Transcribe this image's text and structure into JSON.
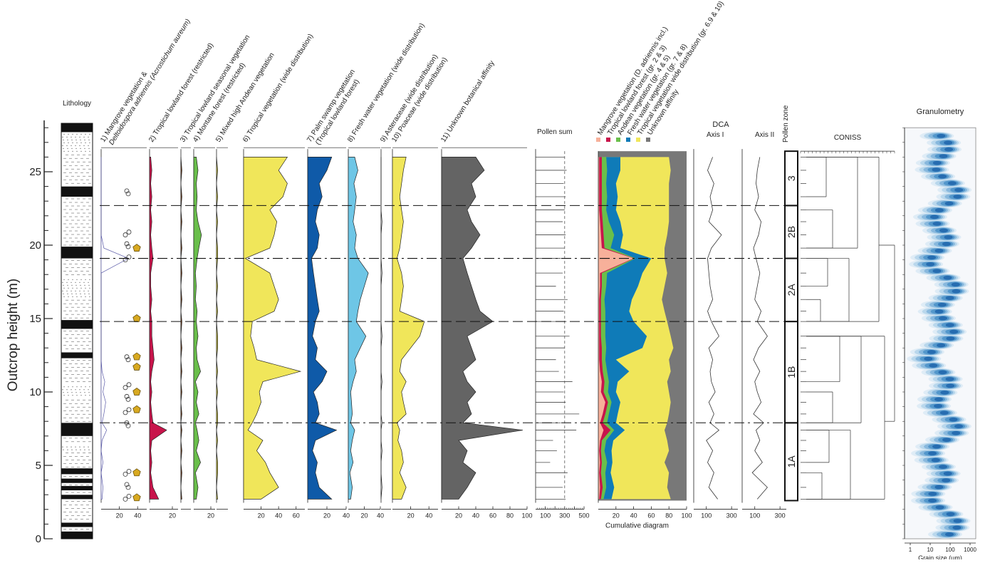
{
  "chart_data": {
    "type": "area",
    "ylabel": "Outcrop height (m)",
    "yticks": [
      0,
      5,
      10,
      15,
      20,
      25
    ],
    "ylim": [
      0,
      29
    ],
    "zone_boundaries": [
      {
        "height": 22.7,
        "style": "long-dash"
      },
      {
        "height": 19.1,
        "style": "dash-dot"
      },
      {
        "height": 14.8,
        "style": "long-dash"
      },
      {
        "height": 7.9,
        "style": "dash-dot"
      }
    ],
    "lithology": {
      "title": "Lithology",
      "units": [
        {
          "from": 0.0,
          "to": 0.5,
          "type": "coal"
        },
        {
          "from": 0.5,
          "to": 0.8,
          "type": "mudstone"
        },
        {
          "from": 0.8,
          "to": 1.1,
          "type": "coal"
        },
        {
          "from": 1.1,
          "to": 2.7,
          "type": "mudstone"
        },
        {
          "from": 2.7,
          "to": 3.0,
          "type": "coal"
        },
        {
          "from": 3.0,
          "to": 3.3,
          "type": "mudstone"
        },
        {
          "from": 3.3,
          "to": 3.6,
          "type": "coal"
        },
        {
          "from": 3.6,
          "to": 3.8,
          "type": "mudstone"
        },
        {
          "from": 3.8,
          "to": 4.1,
          "type": "coal"
        },
        {
          "from": 4.1,
          "to": 4.4,
          "type": "mudstone"
        },
        {
          "from": 4.4,
          "to": 4.8,
          "type": "coal"
        },
        {
          "from": 4.8,
          "to": 6.0,
          "type": "mudstone"
        },
        {
          "from": 6.0,
          "to": 6.4,
          "type": "sandstone"
        },
        {
          "from": 6.4,
          "to": 7.0,
          "type": "mudstone"
        },
        {
          "from": 7.0,
          "to": 7.9,
          "type": "coal"
        },
        {
          "from": 7.9,
          "to": 9.6,
          "type": "mudstone"
        },
        {
          "from": 9.6,
          "to": 10.5,
          "type": "sandstone"
        },
        {
          "from": 10.5,
          "to": 12.3,
          "type": "mudstone"
        },
        {
          "from": 12.3,
          "to": 12.7,
          "type": "coal"
        },
        {
          "from": 12.7,
          "to": 14.3,
          "type": "mudstone"
        },
        {
          "from": 14.3,
          "to": 14.9,
          "type": "coal"
        },
        {
          "from": 14.9,
          "to": 16.4,
          "type": "mudstone"
        },
        {
          "from": 16.4,
          "to": 17.8,
          "type": "sandstone"
        },
        {
          "from": 17.8,
          "to": 19.1,
          "type": "mudstone"
        },
        {
          "from": 19.1,
          "to": 19.9,
          "type": "coal"
        },
        {
          "from": 19.9,
          "to": 23.3,
          "type": "mudstone"
        },
        {
          "from": 23.3,
          "to": 24.0,
          "type": "coal"
        },
        {
          "from": 24.0,
          "to": 26.3,
          "type": "mudstone"
        },
        {
          "from": 26.3,
          "to": 27.7,
          "type": "sandstone"
        },
        {
          "from": 27.7,
          "to": 28.3,
          "type": "coal"
        }
      ]
    },
    "depths": [
      2.7,
      3.5,
      4.5,
      5.2,
      6.0,
      6.7,
      7.4,
      7.9,
      8.5,
      9.3,
      10.0,
      10.7,
      11.4,
      12.2,
      13.0,
      13.8,
      14.8,
      15.5,
      16.3,
      17.2,
      18.1,
      19.1,
      19.8,
      20.7,
      21.6,
      22.4,
      23.3,
      24.2,
      25.1,
      26.0
    ],
    "pollen_series": [
      {
        "key": "mangrove",
        "name": "1) Mangrove vegetation  &",
        "name_line2": "Deltoidospora adriennis (Acrostichum aureum)",
        "color": "#ffffff",
        "stroke": "#5a5aa8",
        "xlim": [
          0,
          50
        ],
        "xticks": [
          20,
          40
        ],
        "exaggeration": true,
        "values": [
          1,
          2,
          0,
          2,
          0,
          1,
          6,
          1,
          3,
          5,
          2,
          4,
          1,
          0,
          0,
          0,
          0,
          0,
          0,
          0,
          0,
          30,
          3,
          0,
          0,
          0,
          0,
          0,
          0,
          0
        ]
      },
      {
        "key": "tropical_lowland",
        "name": "2) Tropical lowland forest (restricted)",
        "color": "#c8144b",
        "xlim": [
          0,
          25
        ],
        "xticks": [
          20
        ],
        "values": [
          8,
          3,
          1,
          2,
          1,
          2,
          15,
          3,
          2,
          1,
          2,
          1,
          2,
          4,
          3,
          2,
          2,
          1,
          2,
          1,
          1,
          3,
          2,
          1,
          2,
          1,
          2,
          1,
          2,
          1
        ]
      },
      {
        "key": "seasonal",
        "name": "3) Tropical lowland seasonal vegetation",
        "color": "#7a3a10",
        "xlim": [
          0,
          10
        ],
        "xticks": [],
        "values": [
          1,
          0,
          1,
          0,
          1,
          0,
          1,
          0,
          1,
          0,
          1,
          0,
          1,
          0,
          1,
          0,
          1,
          0,
          1,
          0,
          1,
          0,
          1,
          0,
          1,
          0,
          1,
          0,
          1,
          0
        ]
      },
      {
        "key": "montane",
        "name": "4) Montane forest (restricted)",
        "color": "#6abf4b",
        "xlim": [
          0,
          25
        ],
        "xticks": [
          20
        ],
        "values": [
          3,
          5,
          2,
          8,
          3,
          6,
          4,
          2,
          6,
          3,
          5,
          2,
          8,
          4,
          3,
          5,
          3,
          4,
          2,
          3,
          2,
          4,
          6,
          9,
          5,
          3,
          4,
          3,
          5,
          3
        ]
      },
      {
        "key": "andean",
        "name": "5) Mixed high Andean vegetation",
        "color": "#d8cf3a",
        "xlim": [
          0,
          10
        ],
        "xticks": [],
        "values": [
          1,
          0,
          1,
          1,
          0,
          1,
          0,
          1,
          1,
          0,
          1,
          0,
          1,
          0,
          1,
          1,
          0,
          1,
          0,
          1,
          0,
          1,
          1,
          0,
          1,
          0,
          1,
          0,
          1,
          0
        ]
      },
      {
        "key": "tropical_wide",
        "name": "6) Tropical vegetation (wide distribution)",
        "color": "#f0e65a",
        "xlim": [
          0,
          70
        ],
        "xticks": [
          20,
          40,
          60
        ],
        "values": [
          20,
          40,
          30,
          25,
          15,
          22,
          5,
          10,
          15,
          20,
          18,
          22,
          65,
          15,
          12,
          8,
          10,
          35,
          40,
          35,
          30,
          2,
          30,
          35,
          38,
          30,
          45,
          50,
          40,
          50
        ]
      },
      {
        "key": "palm_swamp",
        "name": "7) Palm swamp vegetation",
        "name_line2": "(Tropical lowland forest)",
        "color": "#0f5aa8",
        "xlim": [
          0,
          40
        ],
        "xticks": [
          20,
          40
        ],
        "values": [
          25,
          12,
          8,
          10,
          5,
          8,
          30,
          8,
          12,
          10,
          6,
          15,
          20,
          8,
          10,
          5,
          8,
          12,
          10,
          8,
          6,
          4,
          10,
          12,
          8,
          10,
          15,
          12,
          20,
          25
        ]
      },
      {
        "key": "fresh_water",
        "name": "8) Fresh water vegetation (wide distribution)",
        "color": "#6ec6e6",
        "xlim": [
          0,
          40
        ],
        "xticks": [
          20,
          40
        ],
        "values": [
          3,
          5,
          2,
          6,
          3,
          5,
          8,
          3,
          5,
          4,
          3,
          6,
          10,
          8,
          15,
          22,
          10,
          12,
          15,
          20,
          25,
          12,
          8,
          10,
          6,
          8,
          10,
          7,
          12,
          8
        ]
      },
      {
        "key": "asteraceae",
        "name": "9) Asteraceae (wide distribution)",
        "color": "#ffffff",
        "xlim": [
          0,
          10
        ],
        "xticks": [],
        "values": [
          0,
          1,
          0,
          0,
          1,
          0,
          0,
          1,
          0,
          0,
          0,
          1,
          0,
          0,
          0,
          1,
          0,
          0,
          0,
          0,
          1,
          0,
          0,
          0,
          1,
          0,
          0,
          0,
          0,
          0
        ]
      },
      {
        "key": "poaceae",
        "name": "10) Poaceae (wide distribution)",
        "color": "#f0e65a",
        "xlim": [
          0,
          50
        ],
        "xticks": [
          20,
          40
        ],
        "values": [
          10,
          15,
          8,
          12,
          10,
          6,
          8,
          5,
          15,
          12,
          10,
          15,
          8,
          10,
          20,
          30,
          35,
          8,
          10,
          12,
          10,
          5,
          8,
          10,
          12,
          10,
          8,
          10,
          12,
          15
        ]
      },
      {
        "key": "unknown",
        "name": "11) Unknown botanical affinity",
        "color": "#646464",
        "xlim": [
          0,
          100
        ],
        "xticks": [
          20,
          40,
          60,
          80,
          100
        ],
        "values": [
          20,
          30,
          40,
          25,
          30,
          20,
          95,
          25,
          35,
          30,
          40,
          30,
          25,
          40,
          35,
          30,
          60,
          45,
          40,
          35,
          30,
          25,
          35,
          45,
          35,
          30,
          40,
          35,
          50,
          40
        ]
      }
    ],
    "pollen_sum": {
      "name": "Pollen sum",
      "xlim": [
        0,
        500
      ],
      "xticks": [
        100,
        200,
        300,
        400,
        500
      ],
      "reference_line": 300,
      "values": [
        310,
        280,
        330,
        150,
        220,
        180,
        420,
        260,
        450,
        310,
        290,
        380,
        240,
        210,
        300,
        350,
        320,
        290,
        330,
        210,
        280,
        260,
        300,
        310,
        280,
        300,
        310,
        290,
        320,
        300
      ]
    },
    "cumulative": {
      "title": "Cumulative diagram",
      "xlim": [
        0,
        100
      ],
      "xticks": [
        20,
        40,
        60,
        80,
        100
      ],
      "legend": [
        {
          "label": "Mangrove vegetation (D. adriennis incl.)",
          "color": "#f7b09a"
        },
        {
          "label": "Tropical lowland forest (gr. 2 & 3)",
          "color": "#c8144b"
        },
        {
          "label": "Andean vegetation (gr. 4 & 5)",
          "color": "#6abf4b"
        },
        {
          "label": "Fresh water vegetation (gr. 7 & 8)",
          "color": "#0f7bb8"
        },
        {
          "label": "Tropical vegetation wide distribution (gr. 6.9 & 10)",
          "color": "#f0e65a"
        },
        {
          "label": "Unknown affinity",
          "color": "#787878"
        }
      ],
      "cum_boundaries": [
        [
          1,
          3,
          6,
          15,
          82
        ],
        [
          2,
          5,
          9,
          18,
          78
        ],
        [
          1,
          3,
          8,
          14,
          80
        ],
        [
          2,
          4,
          10,
          16,
          75
        ],
        [
          1,
          3,
          7,
          15,
          80
        ],
        [
          2,
          4,
          9,
          17,
          78
        ],
        [
          6,
          14,
          18,
          30,
          75
        ],
        [
          2,
          5,
          10,
          20,
          78
        ],
        [
          5,
          8,
          12,
          22,
          80
        ],
        [
          8,
          11,
          15,
          25,
          82
        ],
        [
          3,
          6,
          11,
          20,
          80
        ],
        [
          4,
          7,
          12,
          22,
          78
        ],
        [
          2,
          5,
          10,
          35,
          82
        ],
        [
          1,
          4,
          8,
          20,
          80
        ],
        [
          1,
          4,
          9,
          50,
          85
        ],
        [
          1,
          3,
          8,
          55,
          82
        ],
        [
          1,
          3,
          8,
          40,
          78
        ],
        [
          1,
          3,
          8,
          35,
          75
        ],
        [
          1,
          3,
          7,
          38,
          72
        ],
        [
          2,
          4,
          9,
          45,
          75
        ],
        [
          2,
          4,
          10,
          50,
          78
        ],
        [
          40,
          41,
          42,
          60,
          75
        ],
        [
          4,
          7,
          14,
          25,
          75
        ],
        [
          3,
          6,
          18,
          28,
          78
        ],
        [
          2,
          5,
          12,
          25,
          80
        ],
        [
          1,
          4,
          9,
          20,
          80
        ],
        [
          1,
          4,
          10,
          22,
          80
        ],
        [
          1,
          4,
          9,
          20,
          80
        ],
        [
          1,
          4,
          10,
          25,
          82
        ],
        [
          1,
          4,
          9,
          25,
          80
        ]
      ]
    },
    "dca": {
      "title": "DCA",
      "axes": [
        {
          "name": "Axis I",
          "xlim": [
            0,
            350
          ],
          "xticks": [
            100,
            300
          ],
          "values": [
            190,
            120,
            160,
            110,
            150,
            100,
            200,
            130,
            160,
            120,
            170,
            140,
            130,
            150,
            120,
            200,
            140,
            110,
            150,
            130,
            120,
            110,
            140,
            220,
            120,
            150,
            130,
            160,
            110,
            150
          ]
        },
        {
          "name": "Axis II",
          "xlim": [
            0,
            350
          ],
          "xticks": [
            100,
            300
          ],
          "values": [
            120,
            200,
            80,
            160,
            100,
            140,
            110,
            170,
            90,
            150,
            120,
            100,
            140,
            90,
            130,
            200,
            120,
            150,
            100,
            120,
            140,
            110,
            90,
            130,
            150,
            100,
            130,
            110,
            120,
            140
          ]
        }
      ]
    },
    "pollen_zones": {
      "title": "Pollen zone",
      "zones": [
        {
          "label": "1A",
          "from": 2.6,
          "to": 7.9
        },
        {
          "label": "1B",
          "from": 7.9,
          "to": 14.8
        },
        {
          "label": "2A",
          "from": 14.8,
          "to": 19.1
        },
        {
          "label": "2B",
          "from": 19.1,
          "to": 22.7
        },
        {
          "label": "3",
          "from": 22.7,
          "to": 26.4
        }
      ]
    },
    "coniss": {
      "title": "CONISS"
    },
    "granulometry": {
      "title": "Granulometry",
      "xlabel": "Grain size (µm)",
      "xticks": [
        "1",
        "10",
        "100",
        "1000"
      ]
    }
  }
}
